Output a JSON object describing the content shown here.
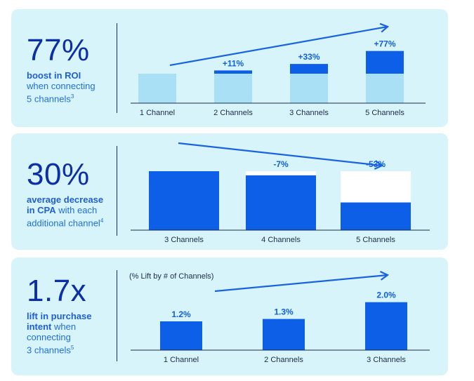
{
  "colors": {
    "panel_bg": "#d8f4fb",
    "light_bar": "#a9e0f6",
    "dark_bar": "#0e5fe8",
    "axis": "#1a2b4a",
    "arrow": "#1a63e0",
    "headline": "#0a2fa8",
    "desc": "#1f6fe0"
  },
  "stats": [
    {
      "big": "77%",
      "desc_bold": "boost in ROI",
      "desc_rest_1": "when connecting",
      "desc_rest_2": "5 channels",
      "sup": "3"
    },
    {
      "big": "30%",
      "desc_bold_1": "average decrease",
      "desc_bold_2": "in CPA",
      "desc_rest_1": " with each",
      "desc_rest_2": "additional channel",
      "sup": "4"
    },
    {
      "big": "1.7x",
      "desc_bold_1": "lift in purchase",
      "desc_bold_2": "intent",
      "desc_rest_1": " when",
      "desc_rest_2": "connecting",
      "desc_rest_3": "3 channels",
      "sup": "5"
    }
  ],
  "chart_data": [
    {
      "type": "bar",
      "title": "",
      "categories": [
        "1 Channel",
        "2 Channels",
        "3 Channels",
        "5 Channels"
      ],
      "base": [
        1,
        1,
        1,
        1
      ],
      "lift": [
        0,
        0.11,
        0.33,
        0.77
      ],
      "data_labels": [
        "",
        "+11%",
        "+33%",
        "+77%"
      ],
      "trend": "up"
    },
    {
      "type": "bar",
      "title": "",
      "categories": [
        "3 Channels",
        "4 Channels",
        "5 Channels"
      ],
      "baseline": [
        1,
        1,
        1
      ],
      "values": [
        1,
        0.93,
        0.47
      ],
      "data_labels": [
        "",
        "-7%",
        "-53%"
      ],
      "trend": "down"
    },
    {
      "type": "bar",
      "title": "(% Lift by # of Channels)",
      "categories": [
        "1 Channel",
        "2 Channels",
        "3 Channels"
      ],
      "values": [
        1.2,
        1.3,
        2.0
      ],
      "data_labels": [
        "1.2%",
        "1.3%",
        "2.0%"
      ],
      "ylim": [
        0,
        2.4
      ],
      "trend": "up"
    }
  ]
}
